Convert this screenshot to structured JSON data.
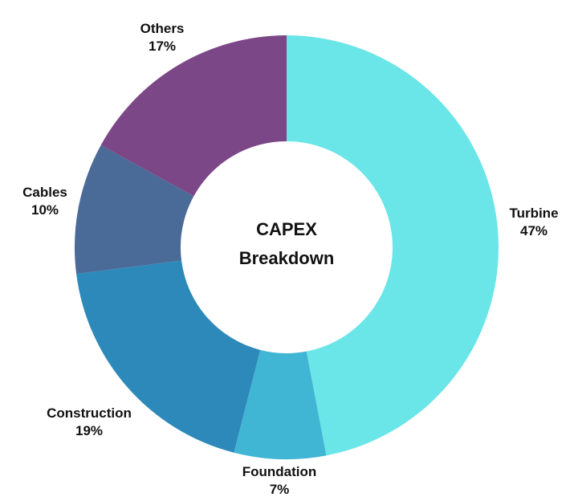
{
  "chart_data": {
    "type": "pie",
    "style": "donut",
    "center_title": [
      "CAPEX",
      "Breakdown"
    ],
    "slices": [
      {
        "label": "Turbine",
        "value": 47,
        "value_label": "47%",
        "color": "#6ae5e8"
      },
      {
        "label": "Foundation",
        "value": 7,
        "value_label": "7%",
        "color": "#41b5d4"
      },
      {
        "label": "Construction",
        "value": 19,
        "value_label": "19%",
        "color": "#2d89b9"
      },
      {
        "label": "Cables",
        "value": 10,
        "value_label": "10%",
        "color": "#4a6a98"
      },
      {
        "label": "Others",
        "value": 17,
        "value_label": "17%",
        "color": "#7b4787"
      }
    ],
    "start": "12 o'clock",
    "direction": "clockwise",
    "legend": "none"
  }
}
